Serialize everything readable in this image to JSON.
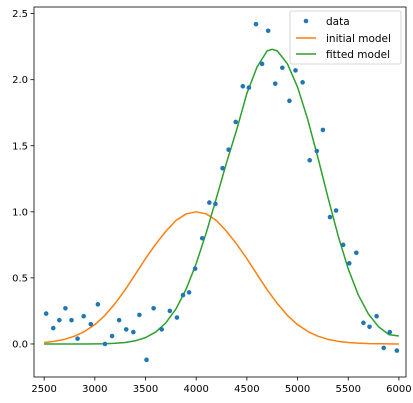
{
  "chart_data": {
    "type": "line",
    "title": "",
    "xlabel": "",
    "ylabel": "",
    "xlim": [
      2400,
      6070
    ],
    "ylim": [
      -0.25,
      2.55
    ],
    "xticks": [
      2500,
      3000,
      3500,
      4000,
      4500,
      5000,
      5500,
      6000
    ],
    "yticks": [
      0.0,
      0.5,
      1.0,
      1.5,
      2.0,
      2.5
    ],
    "xtick_labels": [
      "2500",
      "3000",
      "3500",
      "4000",
      "4500",
      "5000",
      "5500",
      "6000"
    ],
    "ytick_labels": [
      "0.0",
      "0.5",
      "1.0",
      "1.5",
      "2.0",
      "2.5"
    ],
    "grid": false,
    "legend_position": "top-right",
    "colors": {
      "data": "#1f77b4",
      "initial": "#ff7f0e",
      "fitted": "#2ca02c"
    },
    "series": [
      {
        "name": "data",
        "kind": "scatter",
        "x": [
          2520,
          2590,
          2650,
          2710,
          2770,
          2830,
          2890,
          2960,
          3030,
          3100,
          3170,
          3240,
          3310,
          3380,
          3440,
          3510,
          3580,
          3660,
          3740,
          3810,
          3870,
          3930,
          3990,
          4060,
          4130,
          4190,
          4260,
          4320,
          4390,
          4460,
          4520,
          4590,
          4650,
          4710,
          4780,
          4850,
          4920,
          4980,
          5050,
          5120,
          5190,
          5250,
          5320,
          5380,
          5450,
          5510,
          5580,
          5650,
          5710,
          5780,
          5850,
          5910,
          5980
        ],
        "y": [
          0.23,
          0.12,
          0.18,
          0.27,
          0.18,
          0.04,
          0.21,
          0.15,
          0.3,
          0.0,
          0.06,
          0.18,
          0.11,
          0.09,
          0.22,
          -0.12,
          0.27,
          0.11,
          0.25,
          0.2,
          0.37,
          0.39,
          0.57,
          0.8,
          1.07,
          1.06,
          1.33,
          1.47,
          1.68,
          1.95,
          1.94,
          2.42,
          2.12,
          2.37,
          1.97,
          2.09,
          1.84,
          2.07,
          1.98,
          1.39,
          1.46,
          1.62,
          0.96,
          1.01,
          0.75,
          0.61,
          0.69,
          0.16,
          0.13,
          0.21,
          -0.03,
          0.09,
          -0.05
        ]
      },
      {
        "name": "initial model",
        "kind": "line",
        "x": [
          2500,
          2600,
          2700,
          2800,
          2900,
          3000,
          3100,
          3200,
          3300,
          3400,
          3500,
          3600,
          3700,
          3800,
          3900,
          4000,
          4100,
          4200,
          4300,
          4400,
          4500,
          4600,
          4700,
          4800,
          4900,
          5000,
          5100,
          5200,
          5300,
          5400,
          5500,
          5600,
          5700,
          5800,
          5900,
          6000
        ],
        "y": [
          0.011,
          0.02,
          0.035,
          0.059,
          0.095,
          0.146,
          0.216,
          0.306,
          0.411,
          0.527,
          0.646,
          0.755,
          0.852,
          0.934,
          0.984,
          1.0,
          0.984,
          0.934,
          0.852,
          0.755,
          0.646,
          0.527,
          0.411,
          0.306,
          0.216,
          0.146,
          0.095,
          0.059,
          0.035,
          0.02,
          0.011,
          0.006,
          0.003,
          0.002,
          0.001,
          0.0
        ]
      },
      {
        "name": "fitted model",
        "kind": "line",
        "x": [
          2500,
          2600,
          2700,
          2800,
          2900,
          3000,
          3100,
          3200,
          3300,
          3400,
          3500,
          3600,
          3700,
          3800,
          3900,
          4000,
          4100,
          4200,
          4300,
          4400,
          4500,
          4600,
          4700,
          4750,
          4800,
          4900,
          5000,
          5100,
          5200,
          5300,
          5400,
          5500,
          5600,
          5700,
          5800,
          5900,
          6000
        ],
        "y": [
          0.0,
          0.0,
          0.0,
          0.0,
          0.0,
          0.001,
          0.002,
          0.005,
          0.011,
          0.024,
          0.048,
          0.09,
          0.159,
          0.264,
          0.413,
          0.608,
          0.843,
          1.106,
          1.374,
          1.622,
          1.896,
          2.095,
          2.218,
          2.23,
          2.218,
          2.12,
          1.944,
          1.7,
          1.413,
          1.11,
          0.82,
          0.568,
          0.37,
          0.226,
          0.13,
          0.071,
          0.06
        ]
      }
    ]
  }
}
